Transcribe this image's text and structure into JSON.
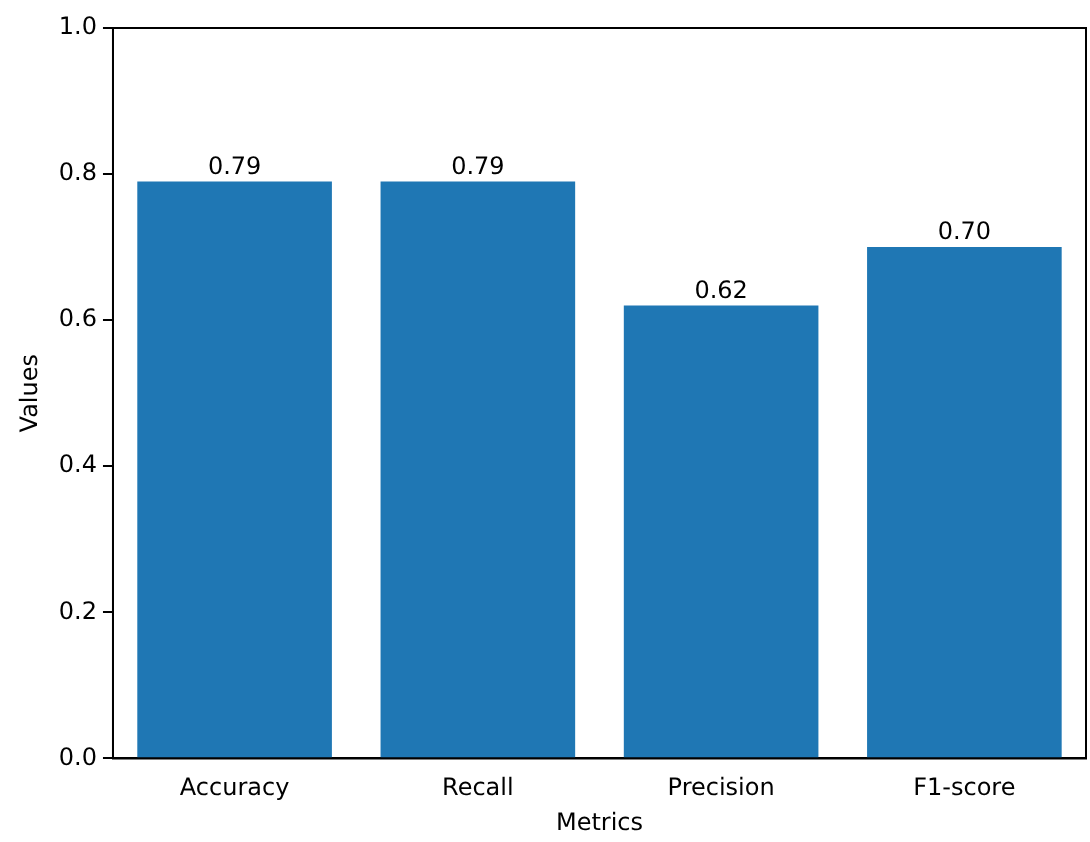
{
  "chart_data": {
    "type": "bar",
    "xlabel": "Metrics",
    "ylabel": "Values",
    "categories": [
      "Accuracy",
      "Recall",
      "Precision",
      "F1-score"
    ],
    "values": [
      0.79,
      0.79,
      0.62,
      0.7
    ],
    "value_labels": [
      "0.79",
      "0.79",
      "0.62",
      "0.70"
    ],
    "color": "#1f77b4",
    "ylim": [
      0,
      1
    ],
    "yticks": [
      {
        "value": 0,
        "label": "0.0"
      },
      {
        "value": 0.2,
        "label": "0.2"
      },
      {
        "value": 0.4,
        "label": "0.4"
      },
      {
        "value": 0.6,
        "label": "0.6"
      },
      {
        "value": 0.8,
        "label": "0.8"
      },
      {
        "value": 1,
        "label": "1.0"
      }
    ],
    "grid": false,
    "legend": false
  }
}
